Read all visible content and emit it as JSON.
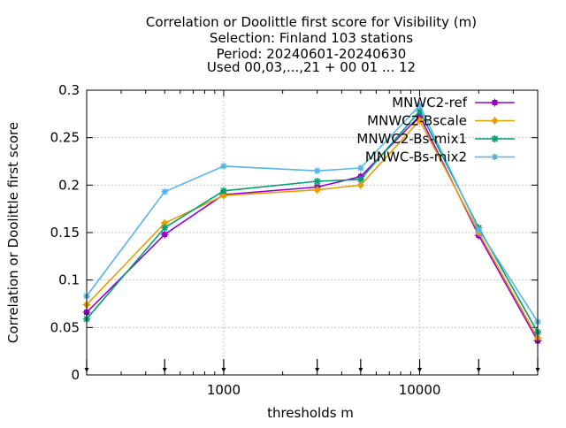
{
  "chart_data": {
    "type": "line",
    "title_lines": [
      "Correlation or Doolittle first score  for Visibility (m)",
      "Selection: Finland    103 stations",
      "Period: 20240601-20240630",
      "Used 00,03,...,21 + 00 01 ... 12"
    ],
    "xlabel": "thresholds m",
    "ylabel": "Correlation or Doolittle first score",
    "x_scale": "log",
    "xlim": [
      200,
      40000
    ],
    "ylim": [
      0,
      0.3
    ],
    "x_ticks": [
      1000,
      10000
    ],
    "x_tick_labels": [
      "1000",
      "10000"
    ],
    "y_ticks": [
      0,
      0.05,
      0.1,
      0.15,
      0.2,
      0.25,
      0.3
    ],
    "y_tick_labels": [
      "0",
      "0.05",
      "0.1",
      "0.15",
      "0.2",
      "0.25",
      "0.3"
    ],
    "grid": true,
    "legend_position": "top-right",
    "threshold_markers": [
      200,
      500,
      1000,
      3000,
      5000,
      10000,
      20000,
      40000
    ],
    "x": [
      200,
      500,
      1000,
      3000,
      5000,
      10000,
      20000,
      40000
    ],
    "series": [
      {
        "name": "MNWC2-ref",
        "color": "#9400d3",
        "marker": "plus-square",
        "values": [
          0.066,
          0.148,
          0.19,
          0.198,
          0.209,
          0.273,
          0.147,
          0.036
        ]
      },
      {
        "name": "MNWC2-Bscale",
        "color": "#e69f00",
        "marker": "plus-circle",
        "values": [
          0.074,
          0.16,
          0.189,
          0.195,
          0.2,
          0.268,
          0.15,
          0.039
        ]
      },
      {
        "name": "MNWC2-Bs-mix1",
        "color": "#009e73",
        "marker": "asterisk",
        "values": [
          0.059,
          0.155,
          0.194,
          0.204,
          0.206,
          0.278,
          0.155,
          0.045
        ]
      },
      {
        "name": "MNWC-Bs-mix2",
        "color": "#56b4e9",
        "marker": "asterisk-square",
        "values": [
          0.083,
          0.193,
          0.22,
          0.215,
          0.218,
          0.284,
          0.153,
          0.056
        ]
      }
    ]
  }
}
